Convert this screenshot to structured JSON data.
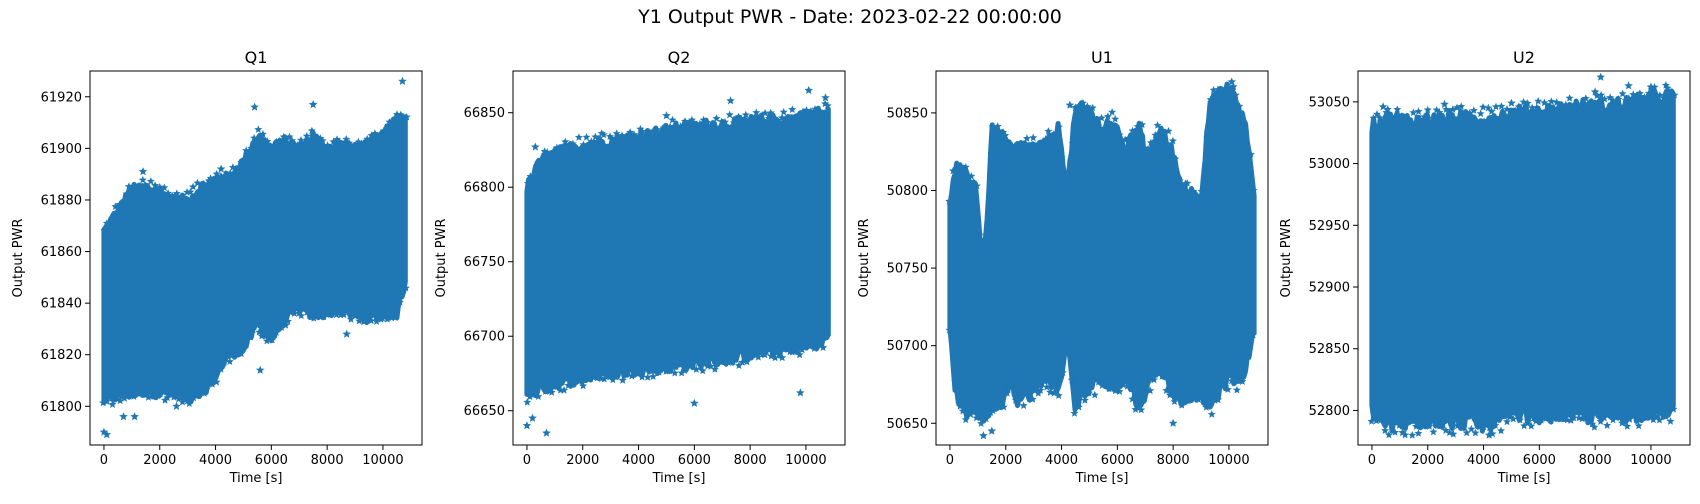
{
  "figure": {
    "suptitle": "Y1 Output PWR - Date: 2023-02-22 00:00:00",
    "marker_color": "#1f77b4"
  },
  "chart_data": [
    {
      "type": "scatter",
      "title": "Q1",
      "xlabel": "Time [s]",
      "ylabel": "Output PWR",
      "marker": "star",
      "xlim": [
        -500,
        11400
      ],
      "ylim": [
        61785,
        61930
      ],
      "xticks": [
        0,
        2000,
        4000,
        6000,
        8000,
        10000
      ],
      "yticks": [
        61800,
        61820,
        61840,
        61860,
        61880,
        61900,
        61920
      ],
      "series": [
        {
          "x": [
            0,
            500,
            1000,
            1500,
            2000,
            2500,
            3000,
            3500,
            4000,
            4500,
            5000,
            5500,
            6000,
            6500,
            7000,
            7500,
            8000,
            8500,
            9000,
            9500,
            10000,
            10500,
            10800
          ],
          "upper": [
            61868,
            61876,
            61884,
            61885,
            61883,
            61880,
            61880,
            61885,
            61888,
            61889,
            61895,
            61905,
            61900,
            61903,
            61900,
            61905,
            61900,
            61902,
            61900,
            61902,
            61905,
            61912,
            61912
          ],
          "lower": [
            61802,
            61804,
            61805,
            61806,
            61805,
            61805,
            61802,
            61805,
            61812,
            61820,
            61822,
            61832,
            61826,
            61834,
            61838,
            61835,
            61836,
            61838,
            61835,
            61834,
            61836,
            61836,
            61848
          ],
          "outliers": [
            [
              0,
              61790
            ],
            [
              100,
              61789
            ],
            [
              700,
              61796
            ],
            [
              1100,
              61796
            ],
            [
              2600,
              61800
            ],
            [
              5600,
              61814
            ],
            [
              1400,
              61891
            ],
            [
              4200,
              61892
            ],
            [
              5400,
              61916
            ],
            [
              7500,
              61917
            ],
            [
              10700,
              61926
            ],
            [
              8700,
              61828
            ]
          ]
        }
      ]
    },
    {
      "type": "scatter",
      "title": "Q2",
      "xlabel": "Time [s]",
      "ylabel": "Output PWR",
      "marker": "star",
      "xlim": [
        -500,
        11400
      ],
      "ylim": [
        66627,
        66878
      ],
      "xticks": [
        0,
        2000,
        4000,
        6000,
        8000,
        10000
      ],
      "yticks": [
        66650,
        66700,
        66750,
        66800,
        66850
      ],
      "series": [
        {
          "x": [
            0,
            500,
            1000,
            1500,
            2000,
            2500,
            3000,
            3500,
            4000,
            4500,
            5000,
            5500,
            6000,
            6500,
            7000,
            7500,
            8000,
            8500,
            9000,
            9500,
            10000,
            10500,
            10800
          ],
          "upper": [
            66800,
            66818,
            66822,
            66826,
            66828,
            66830,
            66831,
            66832,
            66834,
            66836,
            66838,
            66840,
            66840,
            66842,
            66842,
            66843,
            66844,
            66845,
            66845,
            66846,
            66848,
            66850,
            66850
          ],
          "lower": [
            66660,
            66665,
            66668,
            66670,
            66672,
            66674,
            66675,
            66676,
            66678,
            66678,
            66680,
            66680,
            66682,
            66683,
            66684,
            66686,
            66688,
            66690,
            66690,
            66692,
            66694,
            66695,
            66700
          ],
          "outliers": [
            [
              0,
              66640
            ],
            [
              200,
              66645
            ],
            [
              700,
              66635
            ],
            [
              6000,
              66655
            ],
            [
              9800,
              66662
            ],
            [
              5000,
              66848
            ],
            [
              7300,
              66858
            ],
            [
              10100,
              66865
            ],
            [
              10700,
              66860
            ],
            [
              300,
              66827
            ]
          ]
        }
      ]
    },
    {
      "type": "scatter",
      "title": "U1",
      "xlabel": "Time [s]",
      "ylabel": "Output PWR",
      "marker": "star",
      "xlim": [
        -500,
        11400
      ],
      "ylim": [
        50636,
        50877
      ],
      "xticks": [
        0,
        2000,
        4000,
        6000,
        8000,
        10000
      ],
      "yticks": [
        50650,
        50700,
        50750,
        50800,
        50850
      ],
      "series": [
        {
          "x": [
            0,
            200,
            600,
            900,
            1100,
            1300,
            1500,
            1900,
            2200,
            2400,
            3000,
            3500,
            3900,
            4200,
            4500,
            5000,
            5400,
            5800,
            6300,
            6800,
            7000,
            7500,
            7900,
            8300,
            8700,
            9000,
            9300,
            9600,
            10000,
            10300,
            10600,
            10900
          ],
          "upper": [
            50790,
            50815,
            50810,
            50805,
            50766,
            50770,
            50838,
            50835,
            50825,
            50828,
            50828,
            50830,
            50840,
            50800,
            50852,
            50852,
            50840,
            50845,
            50825,
            50845,
            50820,
            50840,
            50830,
            50800,
            50800,
            50790,
            50855,
            50862,
            50865,
            50858,
            50840,
            50798
          ],
          "lower": [
            50710,
            50670,
            50655,
            50660,
            50652,
            50655,
            50660,
            50665,
            50680,
            50665,
            50670,
            50680,
            50670,
            50705,
            50660,
            50672,
            50680,
            50672,
            50680,
            50660,
            50670,
            50688,
            50672,
            50665,
            50668,
            50668,
            50660,
            50670,
            50680,
            50678,
            50685,
            50710
          ],
          "outliers": [
            [
              1200,
              50642
            ],
            [
              1500,
              50645
            ],
            [
              3600,
              50670
            ],
            [
              8000,
              50650
            ],
            [
              10400,
              50678
            ],
            [
              7700,
              50812
            ],
            [
              1300,
              50763
            ],
            [
              10100,
              50870
            ],
            [
              4300,
              50855
            ]
          ]
        }
      ]
    },
    {
      "type": "scatter",
      "title": "U2",
      "xlabel": "Time [s]",
      "ylabel": "Output PWR",
      "marker": "star",
      "xlim": [
        -500,
        11400
      ],
      "ylim": [
        52772,
        53075
      ],
      "xticks": [
        0,
        2000,
        4000,
        6000,
        8000,
        10000
      ],
      "yticks": [
        52800,
        52850,
        52900,
        52950,
        53000,
        53050
      ],
      "series": [
        {
          "x": [
            0,
            500,
            1000,
            1500,
            2000,
            2500,
            3000,
            3500,
            4000,
            4500,
            5000,
            5500,
            6000,
            6500,
            7000,
            7500,
            8000,
            8500,
            9000,
            9500,
            10000,
            10500,
            10800
          ],
          "upper": [
            53030,
            53036,
            53036,
            53034,
            53035,
            53036,
            53037,
            53036,
            53036,
            53038,
            53040,
            53042,
            53042,
            53043,
            53045,
            53046,
            53046,
            53047,
            53048,
            53050,
            53052,
            53054,
            53054
          ],
          "lower": [
            52800,
            52788,
            52788,
            52790,
            52792,
            52792,
            52790,
            52792,
            52788,
            52792,
            52795,
            52796,
            52796,
            52796,
            52798,
            52796,
            52795,
            52796,
            52796,
            52797,
            52800,
            52800,
            52802
          ],
          "outliers": [
            [
              4200,
              52780
            ],
            [
              1100,
              52782
            ],
            [
              400,
              53046
            ],
            [
              2600,
              53048
            ],
            [
              5000,
              53049
            ],
            [
              8200,
              53070
            ],
            [
              8000,
              53058
            ],
            [
              9200,
              53063
            ],
            [
              10000,
              53062
            ]
          ]
        }
      ]
    }
  ]
}
